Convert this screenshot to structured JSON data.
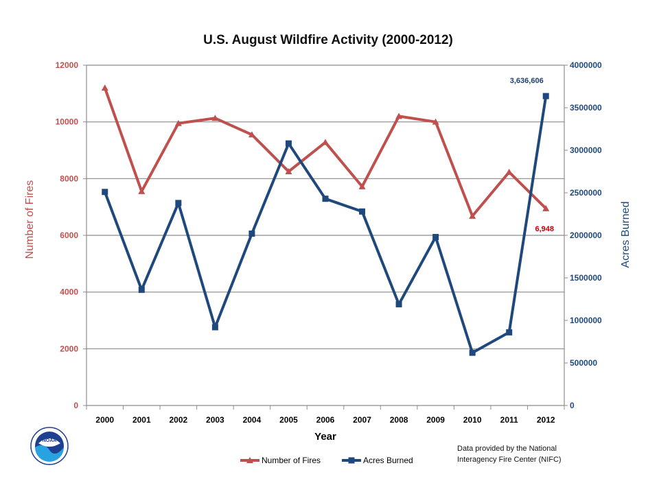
{
  "chart_data": {
    "type": "line",
    "title": "U.S. August Wildfire Activity (2000-2012)",
    "xlabel": "Year",
    "ylabel_left": "Number of Fires",
    "ylabel_right": "Acres Burned",
    "categories": [
      "2000",
      "2001",
      "2002",
      "2003",
      "2004",
      "2005",
      "2006",
      "2007",
      "2008",
      "2009",
      "2010",
      "2011",
      "2012"
    ],
    "y_left": {
      "min": 0,
      "max": 12000,
      "ticks": [
        "0",
        "2000",
        "4000",
        "6000",
        "8000",
        "10000",
        "12000"
      ]
    },
    "y_right": {
      "min": 0,
      "max": 4000000,
      "ticks": [
        "0",
        "500000",
        "1000000",
        "1500000",
        "2000000",
        "2500000",
        "3000000",
        "3500000",
        "4000000"
      ]
    },
    "grid": "horizontal",
    "legend_position": "bottom",
    "series": [
      {
        "name": "Number of Fires",
        "axis": "left",
        "color": "#c0504d",
        "marker": "triangle",
        "values": [
          11200,
          7550,
          9950,
          10130,
          9550,
          8250,
          9280,
          7720,
          10200,
          10000,
          6680,
          8230,
          6948
        ],
        "end_label": "6,948"
      },
      {
        "name": "Acres Burned",
        "axis": "right",
        "color": "#1f497d",
        "marker": "square",
        "values": [
          2510000,
          1360000,
          2380000,
          920000,
          2020000,
          3080000,
          2430000,
          2280000,
          1190000,
          1980000,
          620000,
          860000,
          3636606
        ],
        "end_label": "3,636,606"
      }
    ]
  },
  "footer": {
    "source_line1": "Data provided by the National",
    "source_line2": "Interagency Fire Center (NIFC)",
    "logo_text": "NOAA"
  }
}
